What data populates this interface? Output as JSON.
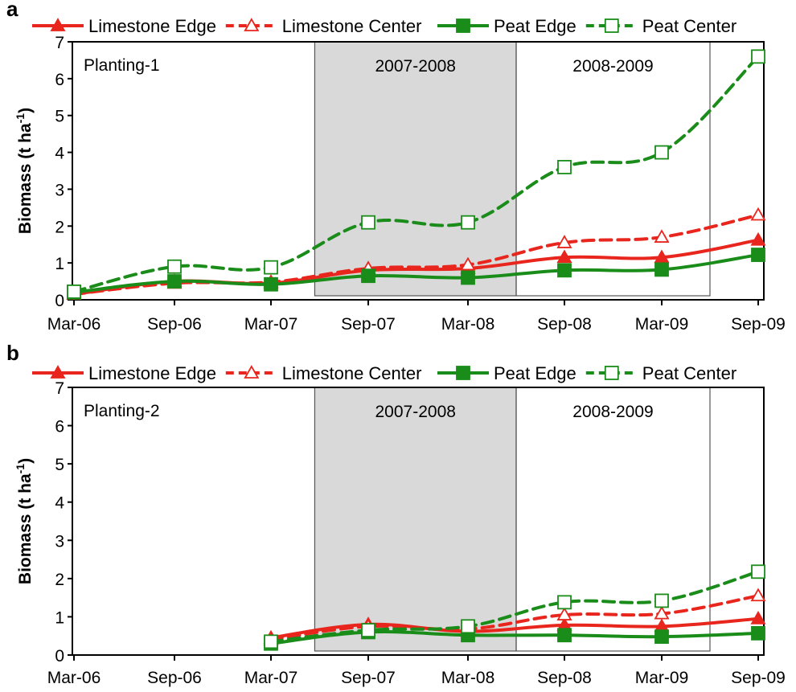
{
  "colors": {
    "limestone": "#e8261d",
    "peat": "#1a8c1a",
    "period_shade": "#d9d9d9"
  },
  "legend": [
    {
      "label": "Limestone Edge",
      "color": "#e8261d",
      "dash": false,
      "marker": "filled-triangle"
    },
    {
      "label": "Limestone Center",
      "color": "#e8261d",
      "dash": true,
      "marker": "open-triangle"
    },
    {
      "label": "Peat Edge",
      "color": "#1a8c1a",
      "dash": false,
      "marker": "filled-square"
    },
    {
      "label": "Peat Center",
      "color": "#1a8c1a",
      "dash": true,
      "marker": "open-square"
    }
  ],
  "chart_data": [
    {
      "panel_letter": "a",
      "type": "line",
      "ylabel": "Biomass (t ha",
      "ylabel_sup": "-1",
      "ylabel_close": ")",
      "ylim": [
        0,
        7
      ],
      "yticks": [
        "0",
        "1",
        "2",
        "3",
        "4",
        "5",
        "6",
        "7"
      ],
      "categories": [
        "Mar-06",
        "Sep-06",
        "Mar-07",
        "Sep-07",
        "Mar-08",
        "Sep-08",
        "Mar-09",
        "Sep-09"
      ],
      "planting_label": "Planting-1",
      "periods": [
        {
          "label": "2007-2008",
          "start": 2.45,
          "end": 4.5,
          "shaded": true
        },
        {
          "label": "2008-2009",
          "start": 4.5,
          "end": 6.5,
          "shaded": false
        }
      ],
      "series": [
        {
          "name": "Limestone Edge",
          "values": [
            0.15,
            0.5,
            0.45,
            0.8,
            0.85,
            1.15,
            1.15,
            1.62
          ]
        },
        {
          "name": "Limestone Center",
          "values": [
            0.15,
            0.45,
            0.48,
            0.85,
            0.95,
            1.55,
            1.7,
            2.3
          ]
        },
        {
          "name": "Peat Edge",
          "values": [
            0.2,
            0.5,
            0.42,
            0.65,
            0.6,
            0.8,
            0.82,
            1.22
          ]
        },
        {
          "name": "Peat Center",
          "values": [
            0.22,
            0.9,
            0.88,
            2.1,
            2.1,
            3.6,
            4.0,
            6.6
          ]
        }
      ]
    },
    {
      "panel_letter": "b",
      "type": "line",
      "ylabel": "Biomass (t ha",
      "ylabel_sup": "-1",
      "ylabel_close": ")",
      "ylim": [
        0,
        7
      ],
      "yticks": [
        "0",
        "1",
        "2",
        "3",
        "4",
        "5",
        "6",
        "7"
      ],
      "categories": [
        "Mar-06",
        "Sep-06",
        "Mar-07",
        "Sep-07",
        "Mar-08",
        "Sep-08",
        "Mar-09",
        "Sep-09"
      ],
      "planting_label": "Planting-2",
      "periods": [
        {
          "label": "2007-2008",
          "start": 2.45,
          "end": 4.5,
          "shaded": true
        },
        {
          "label": "2008-2009",
          "start": 4.5,
          "end": 6.5,
          "shaded": false
        }
      ],
      "series": [
        {
          "name": "Limestone Edge",
          "values": [
            null,
            null,
            0.45,
            0.8,
            0.62,
            0.78,
            0.75,
            0.95
          ]
        },
        {
          "name": "Limestone Center",
          "values": [
            null,
            null,
            0.4,
            0.75,
            0.68,
            1.05,
            1.08,
            1.55
          ]
        },
        {
          "name": "Peat Edge",
          "values": [
            null,
            null,
            0.3,
            0.6,
            0.52,
            0.52,
            0.48,
            0.57
          ]
        },
        {
          "name": "Peat Center",
          "values": [
            null,
            null,
            0.35,
            0.65,
            0.75,
            1.38,
            1.42,
            2.18
          ]
        }
      ]
    }
  ]
}
